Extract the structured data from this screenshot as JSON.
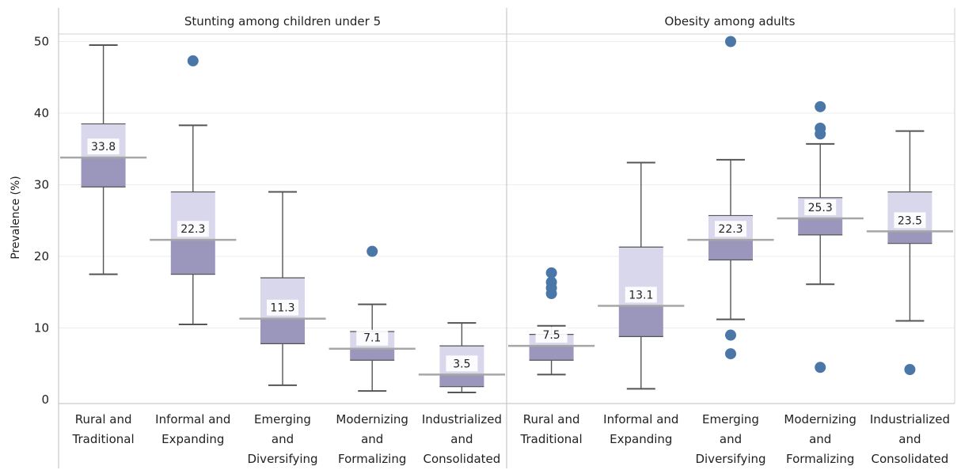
{
  "chart_data": {
    "type": "box",
    "ylabel": "Prevalence (%)",
    "ylim": [
      0,
      52
    ],
    "yticks": [
      0,
      10,
      20,
      30,
      40,
      50
    ],
    "grid": true,
    "colors": {
      "upper_box": "#d9d7ec",
      "lower_box": "#9a96bc",
      "outlier": "#4a77a8",
      "median_line": "#a6a6a6",
      "whisker": "#555555"
    },
    "panels": [
      {
        "title": "Stunting among children under 5",
        "groups": [
          {
            "label": [
              "Rural and",
              "Traditional"
            ],
            "whisker_low": 17.5,
            "q1": 29.7,
            "median": 33.8,
            "q3": 38.5,
            "whisker_high": 49.5,
            "median_label": "33.8",
            "outliers": []
          },
          {
            "label": [
              "Informal and",
              "Expanding"
            ],
            "whisker_low": 10.5,
            "q1": 17.5,
            "median": 22.3,
            "q3": 29.0,
            "whisker_high": 38.3,
            "median_label": "22.3",
            "outliers": [
              47.3
            ]
          },
          {
            "label": [
              "Emerging",
              "and",
              "Diversifying"
            ],
            "whisker_low": 2.0,
            "q1": 7.8,
            "median": 11.3,
            "q3": 17.0,
            "whisker_high": 29.0,
            "median_label": "11.3",
            "outliers": []
          },
          {
            "label": [
              "Modernizing",
              "and",
              "Formalizing"
            ],
            "whisker_low": 1.2,
            "q1": 5.5,
            "median": 7.1,
            "q3": 9.5,
            "whisker_high": 13.3,
            "median_label": "7.1",
            "outliers": [
              20.7
            ]
          },
          {
            "label": [
              "Industrialized",
              "and",
              "Consolidated"
            ],
            "whisker_low": 1.0,
            "q1": 1.8,
            "median": 3.5,
            "q3": 7.5,
            "whisker_high": 10.7,
            "median_label": "3.5",
            "outliers": []
          }
        ]
      },
      {
        "title": "Obesity among adults",
        "groups": [
          {
            "label": [
              "Rural and",
              "Traditional"
            ],
            "whisker_low": 3.5,
            "q1": 5.5,
            "median": 7.5,
            "q3": 9.1,
            "whisker_high": 10.3,
            "median_label": "7.5",
            "outliers": [
              14.8,
              15.6,
              16.4,
              17.7
            ]
          },
          {
            "label": [
              "Informal and",
              "Expanding"
            ],
            "whisker_low": 1.5,
            "q1": 8.8,
            "median": 13.1,
            "q3": 21.3,
            "whisker_high": 33.1,
            "median_label": "13.1",
            "outliers": []
          },
          {
            "label": [
              "Emerging",
              "and",
              "Diversifying"
            ],
            "whisker_low": 11.2,
            "q1": 19.5,
            "median": 22.3,
            "q3": 25.7,
            "whisker_high": 33.5,
            "median_label": "22.3",
            "outliers": [
              6.4,
              9.0,
              50.0
            ]
          },
          {
            "label": [
              "Modernizing",
              "and",
              "Formalizing"
            ],
            "whisker_low": 16.1,
            "q1": 23.0,
            "median": 25.3,
            "q3": 28.2,
            "whisker_high": 35.7,
            "median_label": "25.3",
            "outliers": [
              4.5,
              37.1,
              37.9,
              40.9
            ]
          },
          {
            "label": [
              "Industrialized",
              "and",
              "Consolidated"
            ],
            "whisker_low": 11.0,
            "q1": 21.8,
            "median": 23.5,
            "q3": 29.0,
            "whisker_high": 37.5,
            "median_label": "23.5",
            "outliers": [
              4.2
            ]
          }
        ]
      }
    ]
  }
}
